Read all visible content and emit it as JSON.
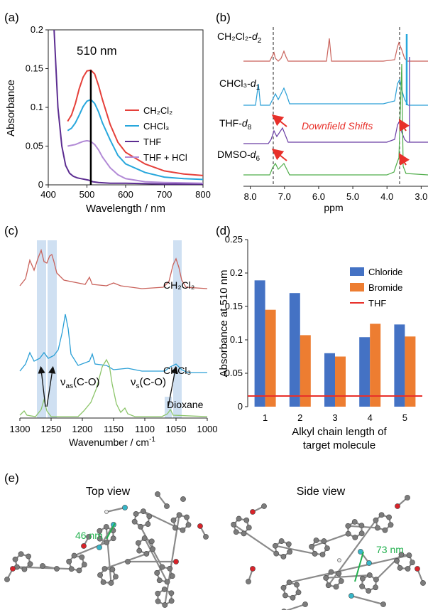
{
  "panels": {
    "a": "(a)",
    "b": "(b)",
    "c": "(c)",
    "d": "(d)",
    "e": "(e)"
  },
  "chart_data": [
    {
      "panel": "a",
      "type": "line",
      "xlabel": "Wavelength / nm",
      "ylabel": "Absorbance",
      "xlim": [
        400,
        800
      ],
      "ylim": [
        0,
        0.2
      ],
      "xticks": [
        "400",
        "500",
        "600",
        "700",
        "800"
      ],
      "yticks": [
        "0",
        "0.05",
        "0.1",
        "0.15",
        "0.2"
      ],
      "annotation": "510 nm",
      "annotation_x": 510,
      "legend_position": "right",
      "series": [
        {
          "name": "CH2Cl2",
          "label_html": "CH₂Cl₂",
          "color": "#e5403a",
          "x": [
            450,
            460,
            470,
            480,
            490,
            500,
            510,
            520,
            530,
            540,
            560,
            580,
            600,
            650,
            700,
            750,
            800
          ],
          "y": [
            0.082,
            0.09,
            0.105,
            0.124,
            0.139,
            0.147,
            0.148,
            0.143,
            0.128,
            0.11,
            0.078,
            0.055,
            0.042,
            0.027,
            0.018,
            0.014,
            0.012
          ]
        },
        {
          "name": "CHCl3",
          "label_html": "CHCl₃",
          "color": "#27a7dc",
          "x": [
            450,
            460,
            470,
            480,
            490,
            500,
            510,
            520,
            530,
            540,
            560,
            580,
            600,
            650,
            700,
            750,
            800
          ],
          "y": [
            0.07,
            0.073,
            0.08,
            0.09,
            0.101,
            0.108,
            0.11,
            0.105,
            0.094,
            0.08,
            0.058,
            0.038,
            0.027,
            0.016,
            0.01,
            0.008,
            0.007
          ]
        },
        {
          "name": "THF",
          "color": "#5c2d91",
          "x": [
            415,
            425,
            435,
            445,
            455,
            465,
            475,
            485,
            495,
            505,
            515,
            530,
            560,
            600,
            700,
            800
          ],
          "y": [
            0.2,
            0.1,
            0.05,
            0.025,
            0.015,
            0.011,
            0.009,
            0.008,
            0.007,
            0.006,
            0.004,
            0.003,
            0.002,
            0.002,
            0.001,
            0.001
          ]
        },
        {
          "name": "THF + HCl",
          "color": "#b28ad6",
          "x": [
            450,
            460,
            470,
            480,
            490,
            500,
            510,
            520,
            530,
            540,
            560,
            580,
            600,
            650,
            700,
            800
          ],
          "y": [
            0.05,
            0.051,
            0.052,
            0.054,
            0.056,
            0.057,
            0.056,
            0.052,
            0.045,
            0.036,
            0.022,
            0.013,
            0.008,
            0.004,
            0.003,
            0.002
          ]
        }
      ]
    },
    {
      "panel": "b",
      "type": "line",
      "xlabel": "ppm",
      "xlim": [
        8.2,
        2.8
      ],
      "xticks": [
        "8.0",
        "7.0",
        "6.0",
        "5.0",
        "4.0",
        "3.0"
      ],
      "annotation": "Downfield Shifts",
      "series": [
        {
          "name": "CH2Cl2-d2",
          "label_main": "CH₂Cl₂-",
          "label_ital": "d",
          "label_sub": "2",
          "color": "#c9625b"
        },
        {
          "name": "CHCl3-d1",
          "label_main": "CHCl₃-",
          "label_ital": "d",
          "label_sub": "1",
          "color": "#2a9fd6"
        },
        {
          "name": "THF-d8",
          "label_main": "THF-",
          "label_ital": "d",
          "label_sub": "8",
          "color": "#6a3fa5"
        },
        {
          "name": "DMSO-d6",
          "label_main": "DMSO-",
          "label_ital": "d",
          "label_sub": "6",
          "color": "#4fad4a"
        }
      ]
    },
    {
      "panel": "c",
      "type": "line",
      "xlabel": "Wavenumber  / cm",
      "xlabel_sup": "-1",
      "xlim": [
        1300,
        1000
      ],
      "xticks": [
        "1300",
        "1250",
        "1200",
        "1150",
        "1100",
        "1050",
        "1000"
      ],
      "annotations": [
        {
          "greek": "ν",
          "sub": "as",
          "rest": "(C-O)"
        },
        {
          "greek": "ν",
          "sub": "s",
          "rest": "(C-O)"
        }
      ],
      "series": [
        {
          "name": "CH2Cl2",
          "label_html": "CH₂Cl₂",
          "color": "#c9625b"
        },
        {
          "name": "CHCl3",
          "label_html": "CHCl₃",
          "color": "#2a9fd6"
        },
        {
          "name": "Dioxane",
          "color": "#8cc56a"
        }
      ]
    },
    {
      "panel": "d",
      "type": "bar",
      "xlabel": "Alkyl chain length of target molecule",
      "xlabel_lines": [
        "Alkyl chain length of",
        "target molecule"
      ],
      "ylabel": "Absorbance at 510 nm",
      "ylim": [
        0,
        0.25
      ],
      "yticks": [
        "0",
        "0.05",
        "0.1",
        "0.15",
        "0.2",
        "0.25"
      ],
      "categories": [
        "1",
        "2",
        "3",
        "4",
        "5"
      ],
      "legend_position": "top-right",
      "series": [
        {
          "name": "Chloride",
          "color": "#4472c4",
          "values": [
            0.189,
            0.17,
            0.08,
            0.104,
            0.123
          ]
        },
        {
          "name": "Bromide",
          "color": "#ed7d31",
          "values": [
            0.145,
            0.107,
            0.075,
            0.124,
            0.105
          ]
        }
      ],
      "reference_line": {
        "name": "THF",
        "color": "#e8302a",
        "value": 0.016
      }
    }
  ],
  "molecules": {
    "top_view_title": "Top view",
    "side_view_title": "Side view",
    "top_distance": "46 nm",
    "side_distance": "73 nm",
    "measure_color": "#22b04e"
  }
}
